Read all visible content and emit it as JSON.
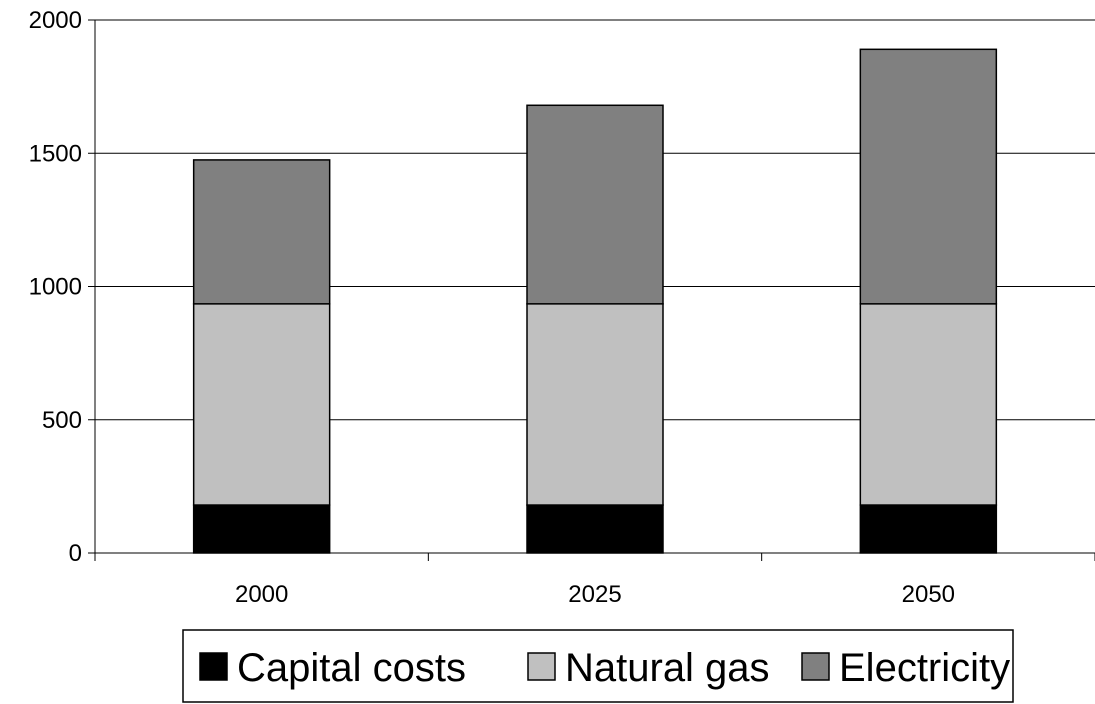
{
  "chart_data": {
    "type": "bar",
    "stacked": true,
    "title": "",
    "xlabel": "",
    "ylabel": "",
    "categories": [
      "2000",
      "2025",
      "2050"
    ],
    "ylim": [
      0,
      2000
    ],
    "yticks": [
      0,
      500,
      1000,
      1500,
      2000
    ],
    "ytick_labels": [
      "0",
      "500",
      "1000",
      "1500",
      "2000"
    ],
    "grid": true,
    "legend": "bottom",
    "series": [
      {
        "name": "Capital costs",
        "values": [
          180,
          180,
          180
        ],
        "color": "#000000"
      },
      {
        "name": "Natural gas",
        "values": [
          755,
          755,
          755
        ],
        "color": "#c0c0c0"
      },
      {
        "name": "Electricity",
        "values": [
          540,
          745,
          955
        ],
        "color": "#808080"
      }
    ]
  }
}
